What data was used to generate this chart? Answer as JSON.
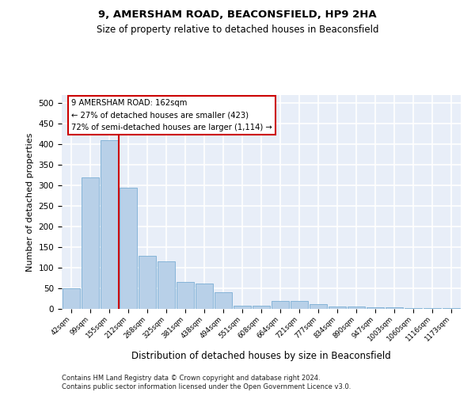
{
  "title1": "9, AMERSHAM ROAD, BEACONSFIELD, HP9 2HA",
  "title2": "Size of property relative to detached houses in Beaconsfield",
  "xlabel": "Distribution of detached houses by size in Beaconsfield",
  "ylabel": "Number of detached properties",
  "categories": [
    "42sqm",
    "99sqm",
    "155sqm",
    "212sqm",
    "268sqm",
    "325sqm",
    "381sqm",
    "438sqm",
    "494sqm",
    "551sqm",
    "608sqm",
    "664sqm",
    "721sqm",
    "777sqm",
    "834sqm",
    "890sqm",
    "947sqm",
    "1003sqm",
    "1060sqm",
    "1116sqm",
    "1173sqm"
  ],
  "values": [
    50,
    320,
    410,
    295,
    130,
    115,
    65,
    62,
    40,
    8,
    8,
    20,
    20,
    12,
    5,
    5,
    4,
    3,
    2,
    2,
    2
  ],
  "bar_color": "#b8d0e8",
  "bar_edge_color": "#7aaed4",
  "vline_color": "#cc0000",
  "annotation_box_edge": "#cc0000",
  "marker_label": "9 AMERSHAM ROAD: 162sqm",
  "annotation_line1": "← 27% of detached houses are smaller (423)",
  "annotation_line2": "72% of semi-detached houses are larger (1,114) →",
  "footer1": "Contains HM Land Registry data © Crown copyright and database right 2024.",
  "footer2": "Contains public sector information licensed under the Open Government Licence v3.0.",
  "ylim": [
    0,
    520
  ],
  "background_color": "#e8eef8"
}
